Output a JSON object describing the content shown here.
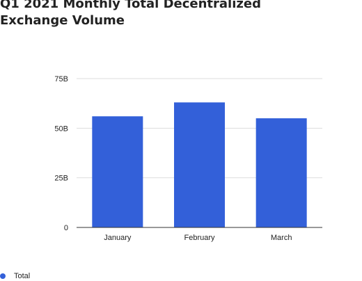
{
  "chart_data": {
    "type": "bar",
    "title": "Q1 2021 Monthly Total Decentralized Exchange Volume",
    "categories": [
      "January",
      "February",
      "March"
    ],
    "series": [
      {
        "name": "Total",
        "values": [
          56,
          63,
          55
        ],
        "color": "#3360d9"
      }
    ],
    "y_ticks": [
      {
        "value": 0,
        "label": "0"
      },
      {
        "value": 25,
        "label": "25B"
      },
      {
        "value": 50,
        "label": "50B"
      },
      {
        "value": 75,
        "label": "75B"
      }
    ],
    "ylim": [
      0,
      75
    ],
    "value_unit": "B",
    "xlabel": "",
    "ylabel": "",
    "grid": true,
    "legend_position": "bottom-left"
  }
}
